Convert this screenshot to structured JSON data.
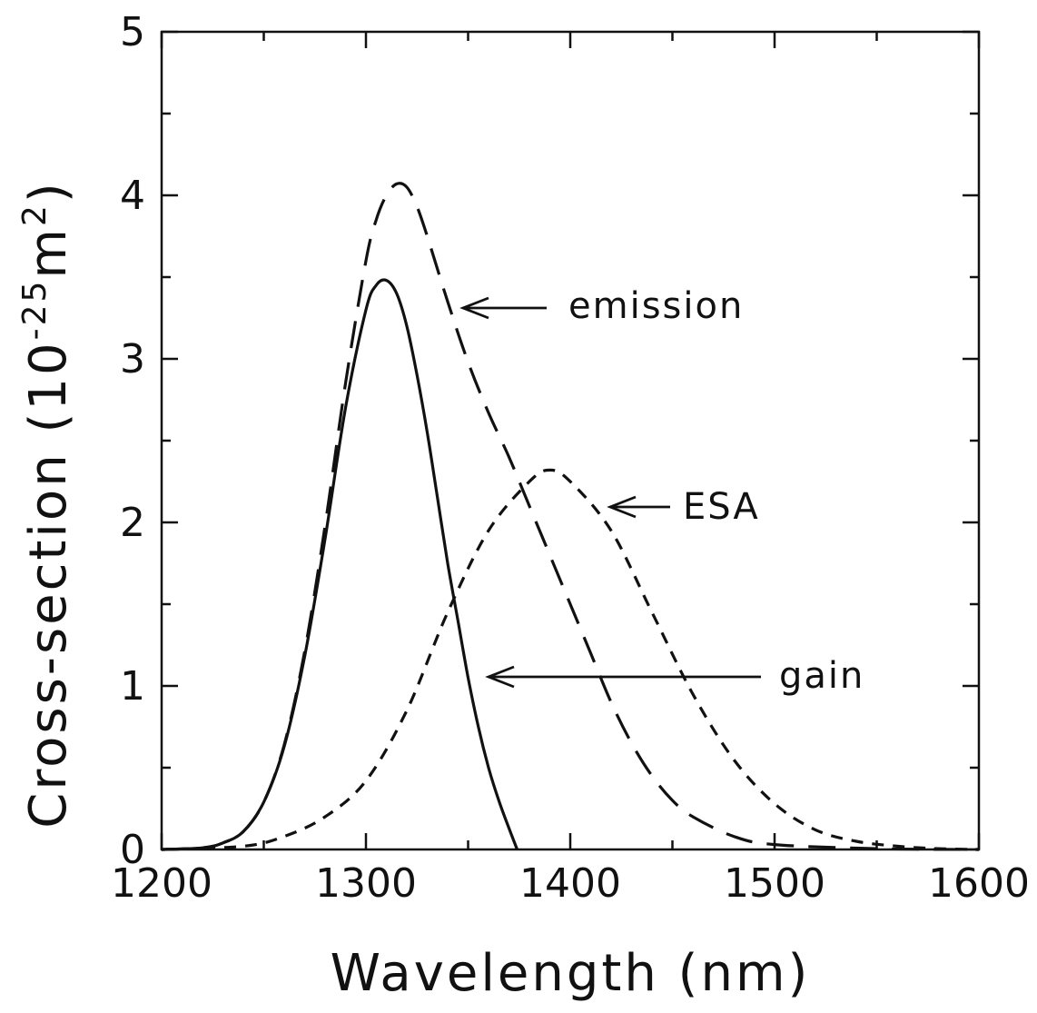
{
  "chart_data": {
    "type": "line",
    "xlabel": "Wavelength (nm)",
    "ylabel": {
      "main": "Cross-section (10",
      "exp": "-25",
      "unit": "m",
      "unit_exp": "2",
      "close": ")"
    },
    "xlim": [
      1200,
      1600
    ],
    "ylim": [
      0,
      5
    ],
    "xticks": [
      1200,
      1300,
      1400,
      1500,
      1600
    ],
    "yticks": [
      0,
      1,
      2,
      3,
      4,
      5
    ],
    "grid": false,
    "series": [
      {
        "name": "emission",
        "style": "long-dash",
        "x": [
          1200,
          1220,
          1230,
          1240,
          1250,
          1260,
          1270,
          1280,
          1290,
          1300,
          1305,
          1310,
          1315,
          1320,
          1325,
          1330,
          1340,
          1350,
          1360,
          1370,
          1380,
          1390,
          1400,
          1410,
          1420,
          1430,
          1440,
          1450,
          1460,
          1480,
          1500,
          1550,
          1600
        ],
        "y": [
          0,
          0.01,
          0.04,
          0.11,
          0.29,
          0.64,
          1.21,
          1.98,
          2.85,
          3.6,
          3.85,
          4.0,
          4.07,
          4.05,
          3.93,
          3.75,
          3.35,
          2.98,
          2.67,
          2.4,
          2.1,
          1.8,
          1.5,
          1.2,
          0.9,
          0.65,
          0.45,
          0.3,
          0.2,
          0.08,
          0.03,
          0.005,
          0
        ]
      },
      {
        "name": "gain",
        "style": "solid",
        "x": [
          1200,
          1220,
          1230,
          1240,
          1250,
          1260,
          1270,
          1280,
          1290,
          1300,
          1305,
          1310,
          1315,
          1320,
          1325,
          1330,
          1335,
          1340,
          1345,
          1350,
          1355,
          1360,
          1365,
          1370,
          1374
        ],
        "y": [
          0,
          0.01,
          0.04,
          0.11,
          0.29,
          0.63,
          1.18,
          1.9,
          2.7,
          3.3,
          3.45,
          3.48,
          3.4,
          3.2,
          2.9,
          2.55,
          2.15,
          1.75,
          1.4,
          1.05,
          0.75,
          0.5,
          0.3,
          0.13,
          0
        ]
      },
      {
        "name": "ESA",
        "style": "short-dash",
        "x": [
          1200,
          1240,
          1260,
          1280,
          1300,
          1320,
          1340,
          1360,
          1380,
          1390,
          1400,
          1420,
          1440,
          1460,
          1480,
          1500,
          1520,
          1540,
          1560,
          1580,
          1600
        ],
        "y": [
          0,
          0.02,
          0.08,
          0.2,
          0.42,
          0.85,
          1.45,
          1.95,
          2.25,
          2.32,
          2.25,
          1.95,
          1.45,
          0.95,
          0.55,
          0.28,
          0.12,
          0.05,
          0.02,
          0.005,
          0
        ]
      }
    ],
    "annotations": [
      {
        "text": "emission",
        "series": "emission"
      },
      {
        "text": "ESA",
        "series": "ESA"
      },
      {
        "text": "gain",
        "series": "gain"
      }
    ],
    "colors": {
      "line": "#111111",
      "axis": "#111111"
    }
  }
}
